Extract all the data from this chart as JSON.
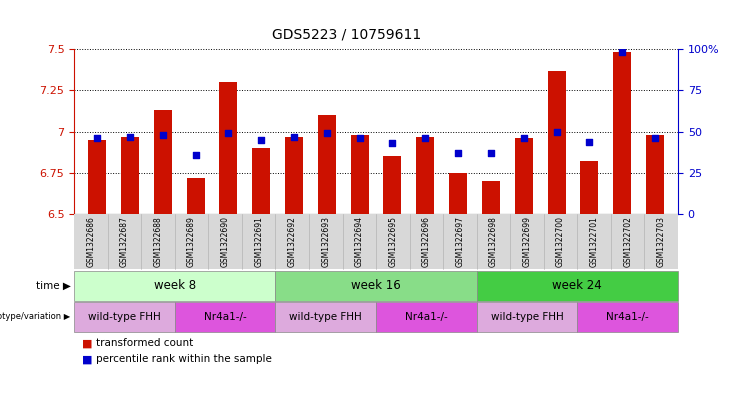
{
  "title": "GDS5223 / 10759611",
  "samples": [
    "GSM1322686",
    "GSM1322687",
    "GSM1322688",
    "GSM1322689",
    "GSM1322690",
    "GSM1322691",
    "GSM1322692",
    "GSM1322693",
    "GSM1322694",
    "GSM1322695",
    "GSM1322696",
    "GSM1322697",
    "GSM1322698",
    "GSM1322699",
    "GSM1322700",
    "GSM1322701",
    "GSM1322702",
    "GSM1322703"
  ],
  "transformed_counts": [
    6.95,
    6.97,
    7.13,
    6.72,
    7.3,
    6.9,
    6.97,
    7.1,
    6.98,
    6.85,
    6.97,
    6.75,
    6.7,
    6.96,
    7.37,
    6.82,
    7.48,
    6.98
  ],
  "percentile_ranks": [
    46,
    47,
    48,
    36,
    49,
    45,
    47,
    49,
    46,
    43,
    46,
    37,
    37,
    46,
    50,
    44,
    98,
    46
  ],
  "ylim_left": [
    6.5,
    7.5
  ],
  "ylim_right": [
    0,
    100
  ],
  "yticks_left": [
    6.5,
    6.75,
    7.0,
    7.25,
    7.5
  ],
  "ytick_labels_left": [
    "6.5",
    "6.75",
    "7",
    "7.25",
    "7.5"
  ],
  "yticks_right": [
    0,
    25,
    50,
    75,
    100
  ],
  "ytick_labels_right": [
    "0",
    "25",
    "50",
    "75",
    "100%"
  ],
  "bar_color": "#cc1100",
  "dot_color": "#0000cc",
  "bar_bottom": 6.5,
  "time_groups": [
    {
      "label": "week 8",
      "start": 0,
      "end": 6,
      "color": "#ccffcc"
    },
    {
      "label": "week 16",
      "start": 6,
      "end": 12,
      "color": "#88dd88"
    },
    {
      "label": "week 24",
      "start": 12,
      "end": 18,
      "color": "#44cc44"
    }
  ],
  "genotype_groups": [
    {
      "label": "wild-type FHH",
      "start": 0,
      "end": 3,
      "color": "#ddaadd"
    },
    {
      "label": "Nr4a1-/-",
      "start": 3,
      "end": 6,
      "color": "#dd55dd"
    },
    {
      "label": "wild-type FHH",
      "start": 6,
      "end": 9,
      "color": "#ddaadd"
    },
    {
      "label": "Nr4a1-/-",
      "start": 9,
      "end": 12,
      "color": "#dd55dd"
    },
    {
      "label": "wild-type FHH",
      "start": 12,
      "end": 15,
      "color": "#ddaadd"
    },
    {
      "label": "Nr4a1-/-",
      "start": 15,
      "end": 18,
      "color": "#dd55dd"
    }
  ],
  "legend_bar_label": "transformed count",
  "legend_dot_label": "percentile rank within the sample",
  "tick_color_left": "#cc1100",
  "tick_color_right": "#0000cc",
  "grid_color": "#000000"
}
